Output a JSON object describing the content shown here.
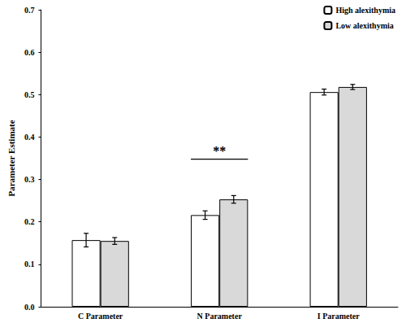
{
  "chart_data": {
    "type": "bar",
    "categories": [
      "C Parameter",
      "N Parameter",
      "I Parameter"
    ],
    "series": [
      {
        "name": "High alexithymia",
        "color": "#ffffff",
        "values": [
          0.157,
          0.216,
          0.506
        ],
        "errors": [
          0.016,
          0.01,
          0.007
        ]
      },
      {
        "name": "Low alexithymia",
        "color": "#d9d9d9",
        "values": [
          0.155,
          0.253,
          0.518
        ],
        "errors": [
          0.008,
          0.009,
          0.006
        ]
      }
    ],
    "y_label": "Parameter Estimate",
    "ylim": [
      0,
      0.7
    ],
    "yticks": [
      {
        "value": 0,
        "label": "0.0"
      },
      {
        "value": 0.1,
        "label": "0.1"
      },
      {
        "value": 0.2,
        "label": "0.2"
      },
      {
        "value": 0.3,
        "label": "0.3"
      },
      {
        "value": 0.4,
        "label": "0.4"
      },
      {
        "value": 0.5,
        "label": "0.5"
      },
      {
        "value": 0.6,
        "label": "0.6"
      },
      {
        "value": 0.7,
        "label": "0.7"
      }
    ],
    "grid": false,
    "legend": "upper right",
    "annotations": [
      {
        "text": "**",
        "category": "N Parameter",
        "y": 0.348
      }
    ]
  }
}
